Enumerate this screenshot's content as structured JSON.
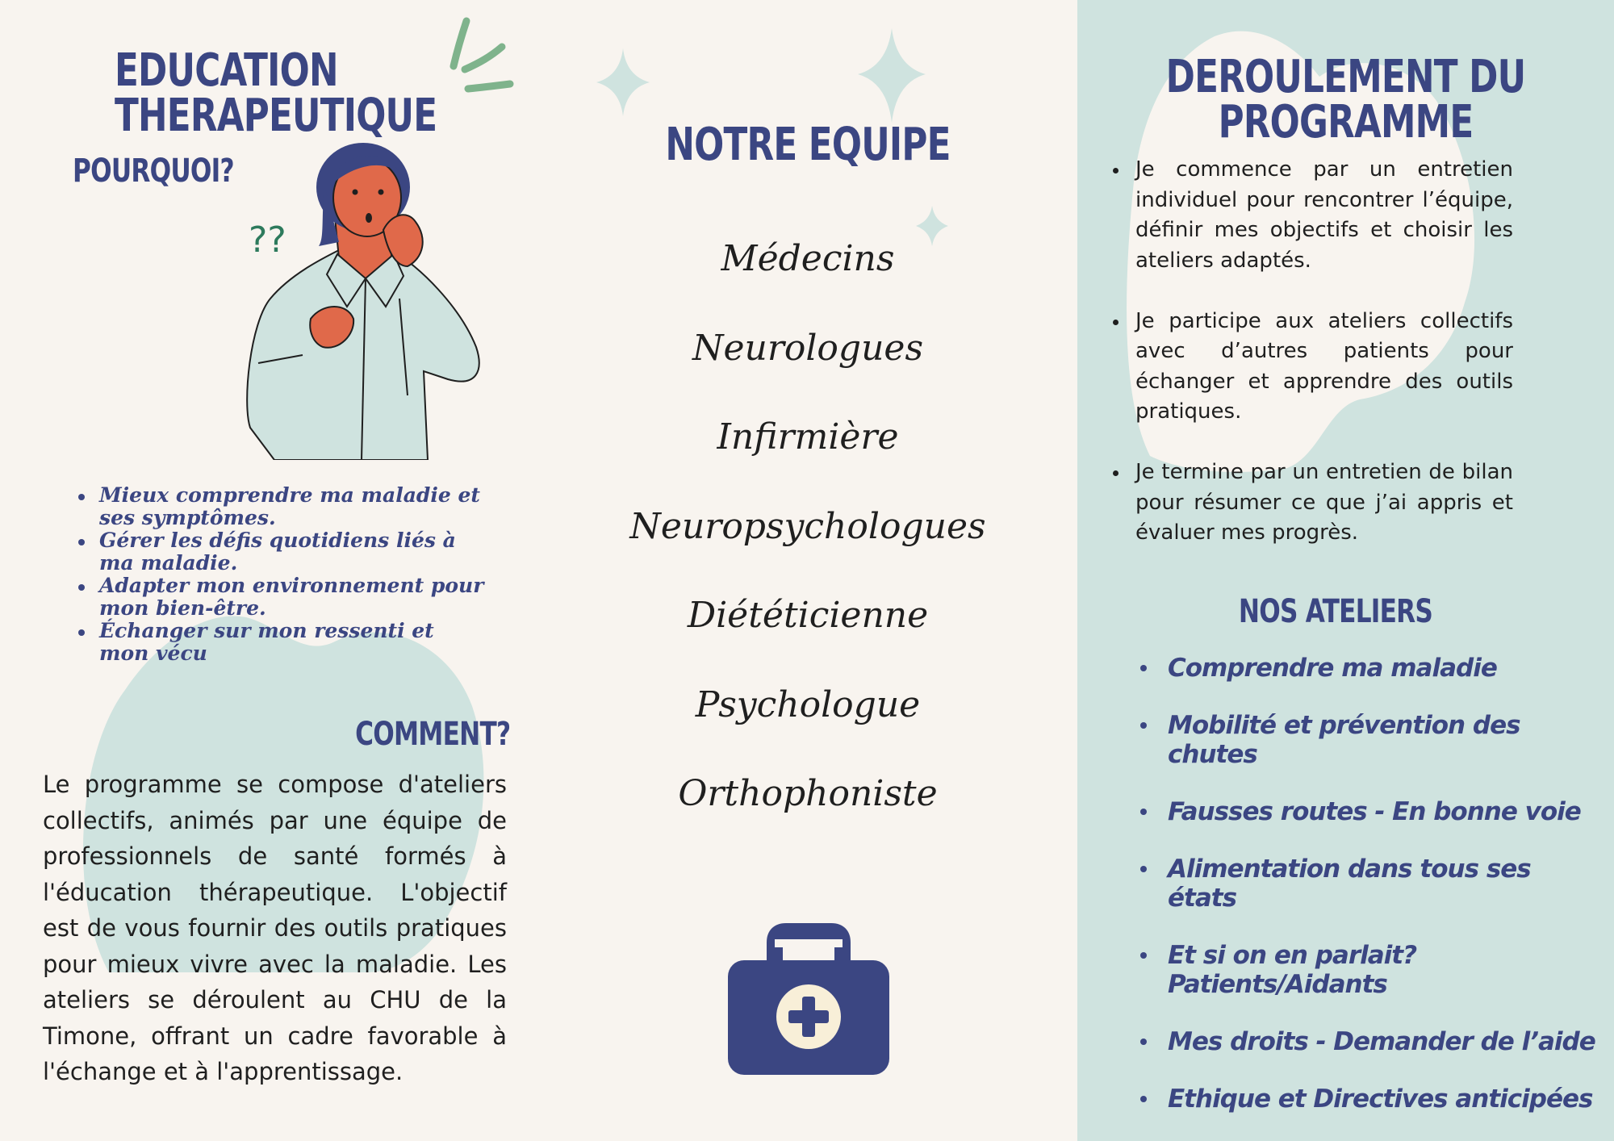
{
  "left": {
    "title_lines": [
      "EDUCATION",
      "THERAPEUTIQUE"
    ],
    "why_heading": "POURQUOI?",
    "question_marks": "??",
    "why_items": [
      "Mieux comprendre ma maladie et ses symptômes.",
      "Gérer les défis quotidiens liés à ma maladie.",
      "Adapter mon environnement pour mon bien-être.",
      "Échanger sur mon ressenti et mon vécu"
    ],
    "how_heading": "COMMENT?",
    "how_text": "Le programme se compose d'ateliers collectifs, animés par une équipe de professionnels de santé formés à l'éducation thérapeutique. L'objectif est de vous fournir des outils pratiques pour mieux vivre avec la maladie. Les ateliers se déroulent au CHU de la Timone, offrant un cadre favorable à l'échange et à l'apprentissage."
  },
  "middle": {
    "team_heading": "NOTRE EQUIPE",
    "team_members": [
      "Médecins",
      "Neurologues",
      "Infirmière",
      "Neuropsychologues",
      "Diététicienne",
      "Psychologue",
      "Orthophoniste"
    ],
    "icon": "first-aid-kit-icon"
  },
  "right": {
    "title_lines": [
      "DEROULEMENT DU",
      "PROGRAMME"
    ],
    "steps": [
      "Je commence par un entretien individuel pour rencontrer l’équipe, définir mes objectifs et choisir les ateliers adaptés.",
      "Je participe aux ateliers collectifs avec d’autres patients pour échanger et apprendre des outils pratiques.",
      "Je termine par un entretien de bilan pour résumer ce que j’ai appris et évaluer mes progrès."
    ],
    "workshops_heading": "NOS ATELIERS",
    "workshops": [
      "Comprendre ma maladie",
      "Mobilité et prévention des chutes",
      "Fausses routes - En bonne voie",
      "Alimentation dans tous ses états",
      "Et si on en parlait? Patients/Aidants",
      "Mes droits - Demander de l’aide",
      "Ethique et Directives anticipées"
    ]
  },
  "colors": {
    "background": "#f8f4ef",
    "accent_navy": "#3b4682",
    "mint": "#cfe3df",
    "green": "#7fb38c",
    "skin": "#e0694a"
  }
}
